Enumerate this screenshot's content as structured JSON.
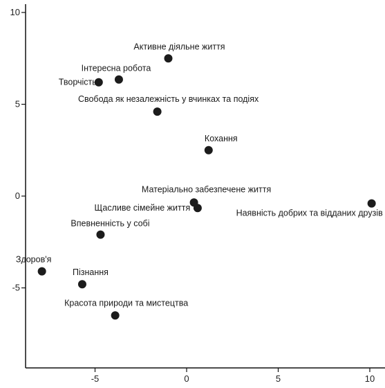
{
  "chart_data": {
    "type": "scatter",
    "title": "",
    "xlabel": "",
    "ylabel": "",
    "xlim": [
      -8.8,
      11
    ],
    "ylim": [
      -9.4,
      10.5
    ],
    "x_ticks": [
      {
        "value": -5,
        "label": "-5"
      },
      {
        "value": 0,
        "label": "0"
      },
      {
        "value": 5,
        "label": "5"
      },
      {
        "value": 10,
        "label": "10"
      }
    ],
    "y_ticks": [
      {
        "value": 10,
        "label": "10"
      },
      {
        "value": 5,
        "label": "5"
      },
      {
        "value": 0,
        "label": "0"
      },
      {
        "value": -5,
        "label": "-5"
      }
    ],
    "grid": false,
    "points": [
      {
        "label": "Активне діяльне життя",
        "x": -1.0,
        "y": 7.5
      },
      {
        "label": "Інтересна робота",
        "x": -3.7,
        "y": 6.35
      },
      {
        "label": "Творчість",
        "x": -4.8,
        "y": 6.2
      },
      {
        "label": "Свобода як незалежність у вчинках та подіях",
        "x": -1.6,
        "y": 4.6
      },
      {
        "label": "Кохання",
        "x": 1.2,
        "y": 2.5
      },
      {
        "label": "Матеріально забезпечене життя",
        "x": 0.4,
        "y": -0.35
      },
      {
        "label": "Щасливе сімейне життя",
        "x": 0.6,
        "y": -0.65
      },
      {
        "label": "Наявність добрих та відданих друзів",
        "x": 10.1,
        "y": -0.4
      },
      {
        "label": "Впевненність у собі",
        "x": -4.7,
        "y": -2.1
      },
      {
        "label": "Здоров'я",
        "x": -7.9,
        "y": -4.1
      },
      {
        "label": "Пізнання",
        "x": -5.7,
        "y": -4.8
      },
      {
        "label": "Красота природи та мистецтва",
        "x": -3.9,
        "y": -6.5
      }
    ]
  }
}
